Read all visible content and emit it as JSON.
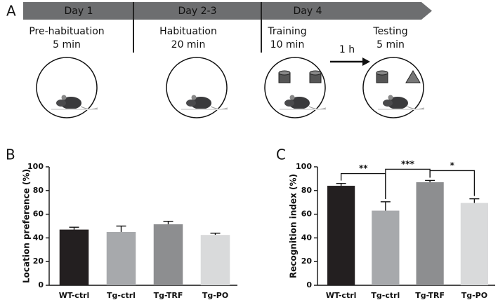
{
  "diagram": {
    "panel_label": "A",
    "days": [
      "Day 1",
      "Day 2-3",
      "Day 4"
    ],
    "stages": [
      {
        "title": "Pre-habituation",
        "duration": "5 min"
      },
      {
        "title": "Habituation",
        "duration": "20 min"
      },
      {
        "title": "Training",
        "duration": "10 min"
      },
      {
        "title": "Testing",
        "duration": "5 min"
      }
    ],
    "delay": "1 h"
  },
  "chart_data": [
    {
      "type": "bar",
      "panel_label": "B",
      "y_label": "Location preference (%)",
      "categories": [
        "WT-ctrl",
        "Tg-ctrl",
        "Tg-TRF",
        "Tg-PO"
      ],
      "values": [
        47,
        45,
        51.5,
        42.5
      ],
      "errors": [
        2,
        5,
        2.5,
        1.5
      ],
      "colors": [
        "#231f20",
        "#a7a9ac",
        "#8d8e90",
        "#d9dadb"
      ],
      "ylim": [
        0,
        100
      ],
      "yticks": [
        0,
        20,
        40,
        60,
        80,
        100
      ]
    },
    {
      "type": "bar",
      "panel_label": "C",
      "y_label": "Recognition index (%)",
      "categories": [
        "WT-ctrl",
        "Tg-ctrl",
        "Tg-TRF",
        "Tg-PO"
      ],
      "values": [
        84,
        63,
        87,
        69.5
      ],
      "errors": [
        2,
        7.5,
        1.5,
        3.5
      ],
      "colors": [
        "#231f20",
        "#a7a9ac",
        "#8d8e90",
        "#d9dadb"
      ],
      "ylim": [
        0,
        100
      ],
      "yticks": [
        0,
        20,
        40,
        60,
        80,
        100
      ],
      "significance": [
        {
          "between": [
            "WT-ctrl",
            "Tg-ctrl"
          ],
          "label": "**"
        },
        {
          "between": [
            "Tg-ctrl",
            "Tg-TRF"
          ],
          "label": "***"
        },
        {
          "between": [
            "Tg-TRF",
            "Tg-PO"
          ],
          "label": "*"
        }
      ]
    }
  ]
}
